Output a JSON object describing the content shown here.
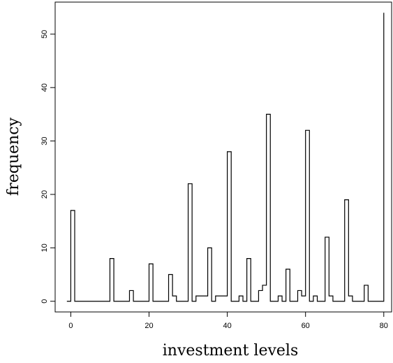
{
  "chart_data": {
    "type": "line",
    "style": "step",
    "xlabel": "investment levels",
    "ylabel": "frequency",
    "xlim": [
      -4,
      82
    ],
    "ylim": [
      -2,
      56
    ],
    "x_ticks": [
      0,
      20,
      40,
      60,
      80
    ],
    "y_ticks": [
      0,
      10,
      20,
      30,
      40,
      50
    ],
    "grid": false,
    "legend": "none",
    "series": [
      {
        "x": [
          -1,
          0,
          1,
          2,
          3,
          4,
          5,
          6,
          7,
          8,
          9,
          10,
          11,
          12,
          13,
          14,
          15,
          16,
          17,
          18,
          19,
          20,
          21,
          22,
          23,
          24,
          25,
          26,
          27,
          28,
          29,
          30,
          31,
          32,
          33,
          34,
          35,
          36,
          37,
          38,
          39,
          40,
          41,
          42,
          43,
          44,
          45,
          46,
          47,
          48,
          49,
          50,
          51,
          52,
          53,
          54,
          55,
          56,
          57,
          58,
          59,
          60,
          61,
          62,
          63,
          64,
          65,
          66,
          67,
          68,
          69,
          70,
          71,
          72,
          73,
          74,
          75,
          76,
          77,
          78,
          79,
          80
        ],
        "y": [
          0,
          17,
          0,
          0,
          0,
          0,
          0,
          0,
          0,
          0,
          0,
          8,
          0,
          0,
          0,
          0,
          2,
          0,
          0,
          0,
          0,
          7,
          0,
          0,
          0,
          0,
          5,
          1,
          0,
          0,
          0,
          22,
          0,
          1,
          1,
          1,
          10,
          0,
          1,
          1,
          1,
          28,
          0,
          0,
          1,
          0,
          8,
          0,
          0,
          2,
          3,
          35,
          0,
          0,
          1,
          0,
          6,
          0,
          0,
          2,
          1,
          32,
          0,
          1,
          0,
          0,
          12,
          1,
          0,
          0,
          0,
          19,
          1,
          0,
          0,
          0,
          3,
          0,
          0,
          0,
          0,
          54
        ]
      }
    ]
  }
}
